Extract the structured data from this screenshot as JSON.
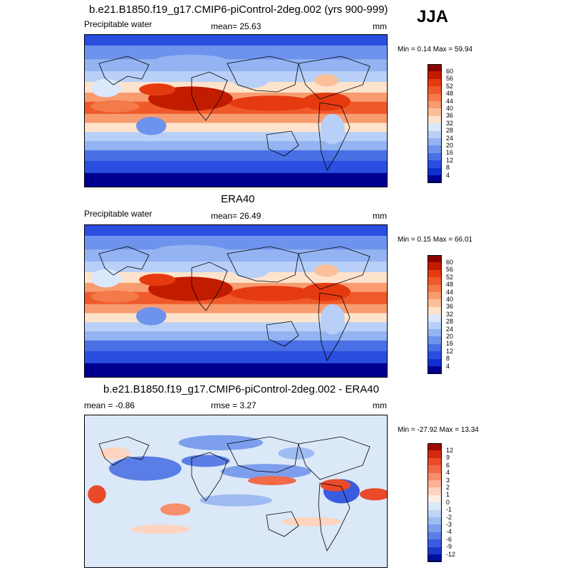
{
  "season": "JJA",
  "panels": [
    {
      "title": "b.e21.B1850.f19_g17.CMIP6-piControl-2deg.002 (yrs 900-999)",
      "left_label": "Precipitable water",
      "mid_label": "mean=  25.63",
      "units": "mm",
      "minmax": "Min =   0.14 Max =  59.94",
      "colorbar": {
        "labels": [
          "60",
          "56",
          "52",
          "48",
          "44",
          "40",
          "36",
          "32",
          "28",
          "24",
          "20",
          "16",
          "12",
          "8",
          "4"
        ],
        "colors": [
          "#8b0000",
          "#c21c00",
          "#e53a10",
          "#ef5a2a",
          "#f47a4a",
          "#f89c70",
          "#fbc09a",
          "#fde3cc",
          "#dbe8fb",
          "#b8d0f7",
          "#93b3f2",
          "#6e93ec",
          "#4a70e6",
          "#2a4ee0",
          "#1030d0",
          "#000090"
        ]
      },
      "map_type": "precip"
    },
    {
      "title": "ERA40",
      "left_label": "Precipitable water",
      "mid_label": "mean=  26.49",
      "units": "mm",
      "minmax": "Min =   0.15 Max =  66.01",
      "colorbar": {
        "labels": [
          "60",
          "56",
          "52",
          "48",
          "44",
          "40",
          "36",
          "32",
          "28",
          "24",
          "20",
          "16",
          "12",
          "8",
          "4"
        ],
        "colors": [
          "#8b0000",
          "#c21c00",
          "#e53a10",
          "#ef5a2a",
          "#f47a4a",
          "#f89c70",
          "#fbc09a",
          "#fde3cc",
          "#dbe8fb",
          "#b8d0f7",
          "#93b3f2",
          "#6e93ec",
          "#4a70e6",
          "#2a4ee0",
          "#1030d0",
          "#000090"
        ]
      },
      "map_type": "precip"
    },
    {
      "title": "b.e21.B1850.f19_g17.CMIP6-piControl-2deg.002 - ERA40",
      "left_label": "mean =  -0.86",
      "mid_label": "rmse =   3.27",
      "units": "mm",
      "minmax": "Min = -27.92 Max =  13.34",
      "colorbar": {
        "labels": [
          "12",
          "9",
          "6",
          "4",
          "3",
          "2",
          "1",
          "0",
          "-1",
          "-2",
          "-3",
          "-4",
          "-6",
          "-9",
          "-12"
        ],
        "colors": [
          "#9b0a00",
          "#d22a10",
          "#ea4a2a",
          "#f26a48",
          "#f78e6c",
          "#fbb294",
          "#fdd4bf",
          "#fdeee4",
          "#dbe8f8",
          "#bfd4f6",
          "#9fbcf2",
          "#7c9eec",
          "#5a7ee6",
          "#3a5ce0",
          "#1c38cc",
          "#00109a"
        ]
      },
      "map_type": "diff"
    }
  ]
}
